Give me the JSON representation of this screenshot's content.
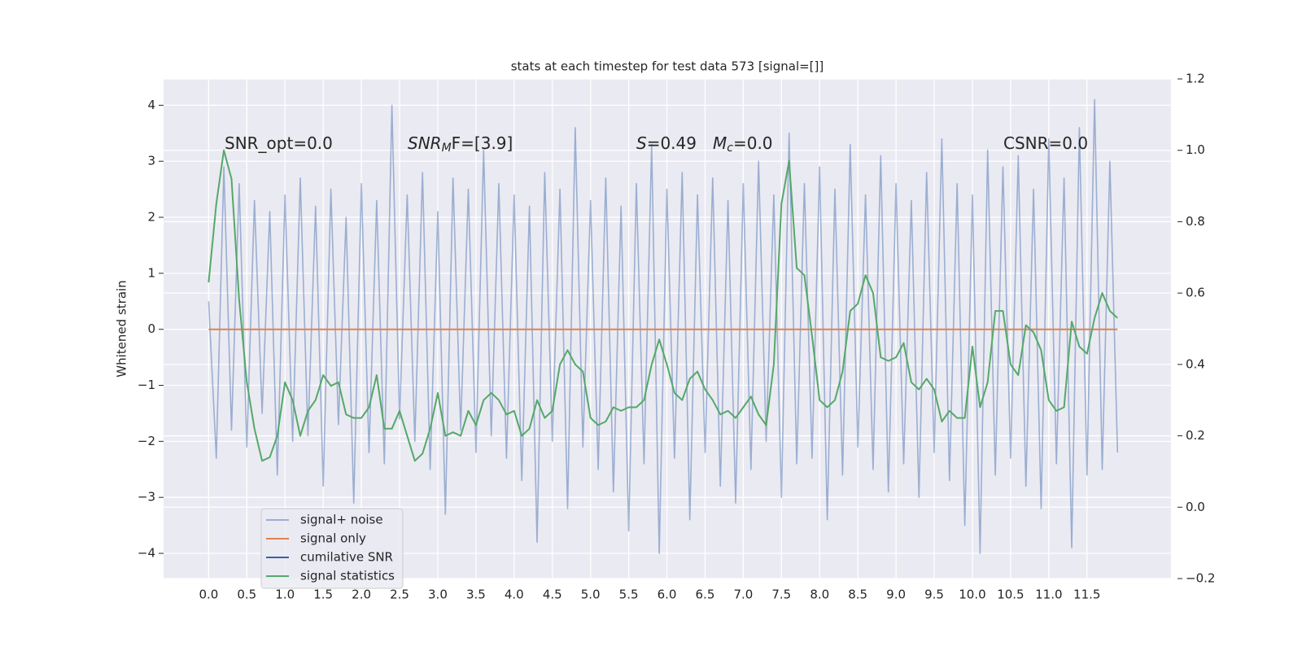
{
  "chart_data": {
    "type": "line",
    "title": "stats at each timestep for test data 573 [signal=[]]",
    "y_label": "Whitened strain",
    "annotations": [
      {
        "text": "SNR_opt=0.0"
      },
      {
        "italic": "SNR",
        "sub": "M",
        "text": "F=[3.9]"
      },
      {
        "italic": "S",
        "text": "=0.49"
      },
      {
        "italic": "M",
        "sub": "c",
        "text": "=0.0"
      },
      {
        "text": "CSNR=0.0"
      }
    ],
    "xlim": [
      -0.59,
      12.6
    ],
    "ylim": [
      -4.45,
      4.47
    ],
    "y2lim": [
      -0.2,
      1.2
    ],
    "xticks": [
      {
        "value": 0,
        "label": "0.0"
      },
      0.5,
      {
        "value": 1,
        "label": "1.0"
      },
      1.5,
      {
        "value": 2,
        "label": "2.0"
      },
      2.5,
      {
        "value": 3,
        "label": "3.0"
      },
      3.5,
      {
        "value": 4,
        "label": "4.0"
      },
      4.5,
      {
        "value": 5,
        "label": "5.0"
      },
      5.5,
      {
        "value": 6,
        "label": "6.0"
      },
      6.5,
      {
        "value": 7,
        "label": "7.0"
      },
      7.5,
      {
        "value": 8,
        "label": "8.0"
      },
      8.5,
      {
        "value": 9,
        "label": "9.0"
      },
      9.5,
      {
        "value": 10,
        "label": "10.0"
      },
      10.5,
      {
        "value": 11,
        "label": "11.0"
      },
      11.5
    ],
    "yticks": [
      {
        "value": -4,
        "label": "−4"
      },
      {
        "value": -3,
        "label": "−3"
      },
      {
        "value": -2,
        "label": "−2"
      },
      {
        "value": -1,
        "label": "−1"
      },
      0,
      1,
      2,
      3,
      4
    ],
    "y2ticks": [
      {
        "value": -0.2,
        "label": "−0.2"
      },
      {
        "value": 0,
        "label": "0.0"
      },
      0.2,
      0.4,
      0.6,
      0.8,
      {
        "value": 1,
        "label": "1.0"
      },
      1.2
    ],
    "grid": true,
    "legend": "lower left",
    "x": [
      0.0,
      0.1,
      0.2,
      0.3,
      0.4,
      0.5,
      0.6,
      0.7,
      0.8,
      0.9,
      1.0,
      1.1,
      1.2,
      1.3,
      1.4,
      1.5,
      1.6,
      1.7,
      1.8,
      1.9,
      2.0,
      2.1,
      2.2,
      2.3,
      2.4,
      2.5,
      2.6,
      2.7,
      2.8,
      2.9,
      3.0,
      3.1,
      3.2,
      3.3,
      3.4,
      3.5,
      3.6,
      3.7,
      3.8,
      3.9,
      4.0,
      4.1,
      4.2,
      4.3,
      4.4,
      4.5,
      4.6,
      4.7,
      4.8,
      4.9,
      5.0,
      5.1,
      5.2,
      5.3,
      5.4,
      5.5,
      5.6,
      5.7,
      5.8,
      5.9,
      6.0,
      6.1,
      6.2,
      6.3,
      6.4,
      6.5,
      6.6,
      6.7,
      6.8,
      6.9,
      7.0,
      7.1,
      7.2,
      7.3,
      7.4,
      7.5,
      7.6,
      7.7,
      7.8,
      7.9,
      8.0,
      8.1,
      8.2,
      8.3,
      8.4,
      8.5,
      8.6,
      8.7,
      8.8,
      8.9,
      9.0,
      9.1,
      9.2,
      9.3,
      9.4,
      9.5,
      9.6,
      9.7,
      9.8,
      9.9,
      10.0,
      10.1,
      10.2,
      10.3,
      10.4,
      10.5,
      10.6,
      10.7,
      10.8,
      10.9,
      11.0,
      11.1,
      11.2,
      11.3,
      11.4,
      11.5,
      11.6,
      11.7,
      11.8,
      11.9
    ],
    "series": [
      {
        "name": "signal+ noise",
        "color": "#4c72b0",
        "opacity": 0.5,
        "values": [
          0.5,
          -2.3,
          2.9,
          -1.8,
          2.6,
          -2.1,
          2.3,
          -1.5,
          2.1,
          -2.6,
          2.4,
          -2.0,
          2.7,
          -1.9,
          2.2,
          -2.8,
          2.5,
          -1.7,
          2.0,
          -3.1,
          2.6,
          -2.2,
          2.3,
          -2.4,
          4.0,
          -1.6,
          2.4,
          -2.0,
          2.8,
          -2.5,
          2.1,
          -3.3,
          2.7,
          -1.8,
          2.5,
          -2.2,
          3.2,
          -1.9,
          2.6,
          -2.3,
          2.4,
          -2.7,
          2.2,
          -3.8,
          2.8,
          -2.0,
          2.5,
          -3.2,
          3.6,
          -2.1,
          2.3,
          -2.5,
          2.7,
          -2.9,
          2.2,
          -3.6,
          2.6,
          -2.4,
          3.3,
          -4.0,
          2.5,
          -2.3,
          2.8,
          -3.4,
          2.4,
          -2.2,
          2.7,
          -2.8,
          2.3,
          -3.1,
          2.6,
          -2.5,
          3.0,
          -2.0,
          2.4,
          -3.0,
          3.5,
          -2.4,
          2.6,
          -2.3,
          2.9,
          -3.4,
          2.5,
          -2.6,
          3.3,
          -2.1,
          2.4,
          -2.5,
          3.1,
          -2.9,
          2.6,
          -2.4,
          2.3,
          -3.0,
          2.8,
          -2.2,
          3.4,
          -2.7,
          2.6,
          -3.5,
          2.4,
          -4.0,
          3.2,
          -2.6,
          2.9,
          -2.3,
          3.1,
          -2.8,
          2.5,
          -3.2,
          3.4,
          -2.4,
          2.7,
          -3.9,
          3.6,
          -2.6,
          4.1,
          -2.5,
          3.0,
          -2.2
        ]
      },
      {
        "name": "signal only",
        "color": "#dd8452",
        "x": [
          0.0,
          11.9
        ],
        "values": [
          0,
          0
        ]
      },
      {
        "name": "cumilative SNR",
        "color": "#3a5fa8",
        "x": [],
        "values": []
      },
      {
        "name": "signal statistics",
        "color": "#55a868",
        "axis": "y2",
        "values": [
          0.63,
          0.85,
          1.0,
          0.92,
          0.58,
          0.35,
          0.22,
          0.13,
          0.14,
          0.2,
          0.35,
          0.3,
          0.2,
          0.27,
          0.3,
          0.37,
          0.34,
          0.35,
          0.26,
          0.25,
          0.25,
          0.28,
          0.37,
          0.22,
          0.22,
          0.27,
          0.2,
          0.13,
          0.15,
          0.22,
          0.32,
          0.2,
          0.21,
          0.2,
          0.27,
          0.23,
          0.3,
          0.32,
          0.3,
          0.26,
          0.27,
          0.2,
          0.22,
          0.3,
          0.25,
          0.27,
          0.4,
          0.44,
          0.4,
          0.38,
          0.25,
          0.23,
          0.24,
          0.28,
          0.27,
          0.28,
          0.28,
          0.3,
          0.4,
          0.47,
          0.4,
          0.32,
          0.3,
          0.36,
          0.38,
          0.33,
          0.3,
          0.26,
          0.27,
          0.25,
          0.28,
          0.31,
          0.26,
          0.23,
          0.4,
          0.85,
          0.97,
          0.67,
          0.65,
          0.48,
          0.3,
          0.28,
          0.3,
          0.38,
          0.55,
          0.57,
          0.65,
          0.6,
          0.42,
          0.41,
          0.42,
          0.46,
          0.35,
          0.33,
          0.36,
          0.33,
          0.24,
          0.27,
          0.25,
          0.25,
          0.45,
          0.28,
          0.35,
          0.55,
          0.55,
          0.4,
          0.37,
          0.51,
          0.49,
          0.44,
          0.3,
          0.27,
          0.28,
          0.52,
          0.45,
          0.43,
          0.53,
          0.6,
          0.55,
          0.53
        ]
      }
    ]
  }
}
